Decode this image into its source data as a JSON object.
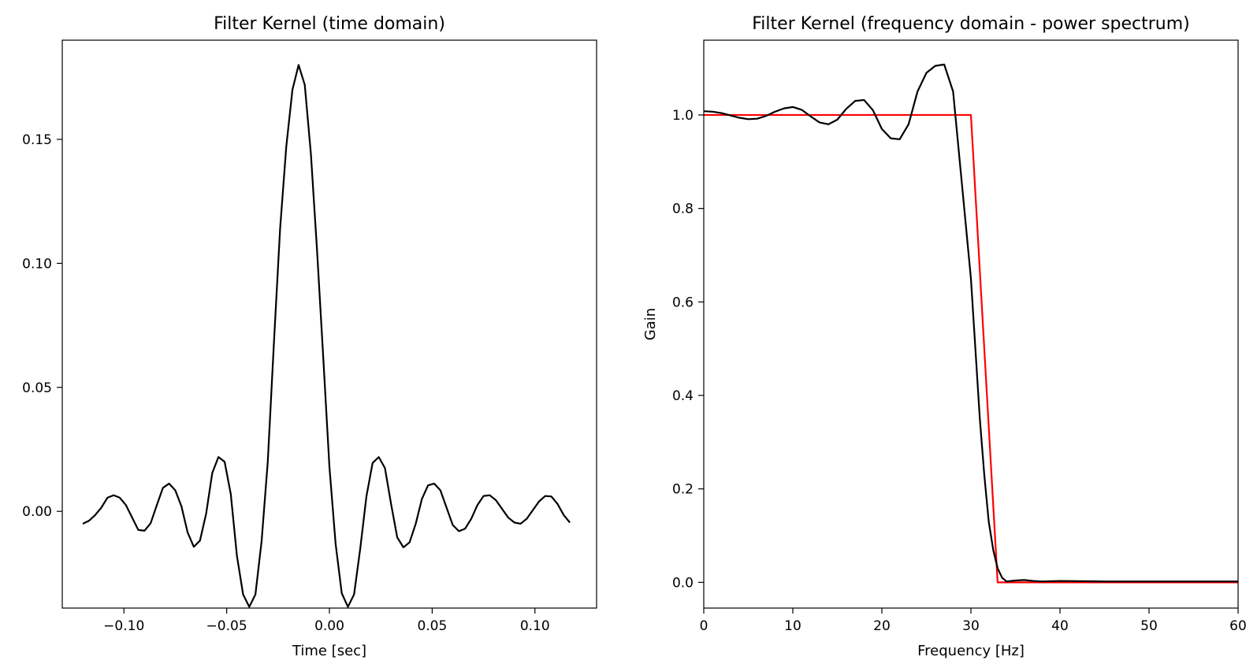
{
  "chart_data": [
    {
      "type": "line",
      "title": "Filter Kernel (time domain)",
      "xlabel": "Time [sec]",
      "ylabel": "",
      "xlim": [
        -0.13,
        0.13
      ],
      "ylim": [
        -0.039,
        0.19
      ],
      "xticks": [
        -0.1,
        -0.05,
        0.0,
        0.05,
        0.1
      ],
      "xtick_labels": [
        "−0.10",
        "−0.05",
        "0.00",
        "0.05",
        "0.10"
      ],
      "yticks": [
        0.0,
        0.05,
        0.1,
        0.15
      ],
      "ytick_labels": [
        "0.00",
        "0.05",
        "0.10",
        "0.15"
      ],
      "grid": false,
      "series": [
        {
          "color": "#000000",
          "x": [
            -0.12,
            -0.117,
            -0.114,
            -0.111,
            -0.108,
            -0.105,
            -0.102,
            -0.099,
            -0.096,
            -0.093,
            -0.09,
            -0.087,
            -0.084,
            -0.081,
            -0.078,
            -0.075,
            -0.072,
            -0.069,
            -0.066,
            -0.063,
            -0.06,
            -0.057,
            -0.054,
            -0.051,
            -0.048,
            -0.045,
            -0.042,
            -0.039,
            -0.036,
            -0.033,
            -0.03,
            -0.027,
            -0.024,
            -0.021,
            -0.018,
            -0.015,
            -0.012,
            -0.009,
            -0.006,
            -0.003,
            0.0,
            0.003,
            0.006,
            0.009,
            0.012,
            0.015,
            0.018,
            0.021,
            0.024,
            0.027,
            0.03,
            0.033,
            0.036,
            0.039,
            0.042,
            0.045,
            0.048,
            0.051,
            0.054,
            0.057,
            0.06,
            0.063,
            0.066,
            0.069,
            0.072,
            0.075,
            0.078,
            0.081,
            0.084,
            0.087,
            0.09,
            0.093,
            0.096,
            0.099,
            0.102,
            0.105,
            0.108,
            0.111,
            0.114,
            0.117
          ],
          "y": [
            -0.005,
            -0.0038,
            -0.0015,
            0.0015,
            0.0055,
            0.0065,
            0.0055,
            0.0025,
            -0.0025,
            -0.0075,
            -0.0078,
            -0.0048,
            0.0025,
            0.0095,
            0.0112,
            0.0085,
            0.002,
            -0.0085,
            -0.0143,
            -0.0118,
            -0.001,
            0.0155,
            0.0219,
            0.02,
            0.007,
            -0.018,
            -0.0335,
            -0.0385,
            -0.0335,
            -0.012,
            0.02,
            0.068,
            0.114,
            0.147,
            0.17,
            0.18,
            0.172,
            0.144,
            0.105,
            0.062,
            0.018,
            -0.013,
            -0.033,
            -0.0385,
            -0.0335,
            -0.015,
            0.006,
            0.0195,
            0.0219,
            0.0175,
            0.003,
            -0.0105,
            -0.0145,
            -0.0125,
            -0.005,
            0.005,
            0.0105,
            0.0112,
            0.0085,
            0.0015,
            -0.0055,
            -0.008,
            -0.007,
            -0.003,
            0.0025,
            0.0062,
            0.0065,
            0.0045,
            0.001,
            -0.0025,
            -0.0045,
            -0.005,
            -0.003,
            0.0005,
            0.004,
            0.0062,
            0.006,
            0.003,
            -0.0015,
            -0.0045
          ]
        }
      ]
    },
    {
      "type": "line",
      "title": "Filter Kernel (frequency domain - power spectrum)",
      "xlabel": "Frequency [Hz]",
      "ylabel": "Gain",
      "xlim": [
        0,
        60
      ],
      "ylim": [
        -0.055,
        1.16
      ],
      "xticks": [
        0,
        10,
        20,
        30,
        40,
        50,
        60
      ],
      "xtick_labels": [
        "0",
        "10",
        "20",
        "30",
        "40",
        "50",
        "60"
      ],
      "yticks": [
        0.0,
        0.2,
        0.4,
        0.6,
        0.8,
        1.0
      ],
      "ytick_labels": [
        "0.0",
        "0.2",
        "0.4",
        "0.6",
        "0.8",
        "1.0"
      ],
      "grid": false,
      "series": [
        {
          "color": "#ff0000",
          "x": [
            0,
            30,
            33,
            60
          ],
          "y": [
            1.0,
            1.0,
            0.0,
            0.0
          ]
        },
        {
          "color": "#000000",
          "x": [
            0,
            1,
            2,
            3,
            4,
            5,
            6,
            7,
            8,
            9,
            10,
            11,
            12,
            13,
            14,
            15,
            16,
            17,
            18,
            19,
            20,
            21,
            22,
            23,
            24,
            25,
            26,
            27,
            28,
            29,
            30,
            30.5,
            31,
            31.5,
            32,
            32.5,
            33,
            33.5,
            34,
            35,
            36,
            37,
            38,
            40,
            45,
            50,
            55,
            60
          ],
          "y": [
            1.008,
            1.007,
            1.004,
            0.999,
            0.994,
            0.991,
            0.992,
            0.998,
            1.007,
            1.014,
            1.017,
            1.011,
            0.997,
            0.984,
            0.98,
            0.99,
            1.013,
            1.03,
            1.032,
            1.01,
            0.97,
            0.95,
            0.948,
            0.98,
            1.05,
            1.09,
            1.105,
            1.108,
            1.05,
            0.85,
            0.65,
            0.5,
            0.35,
            0.23,
            0.13,
            0.07,
            0.03,
            0.01,
            0.002,
            0.004,
            0.005,
            0.003,
            0.002,
            0.003,
            0.002,
            0.002,
            0.002,
            0.002
          ]
        }
      ]
    }
  ]
}
